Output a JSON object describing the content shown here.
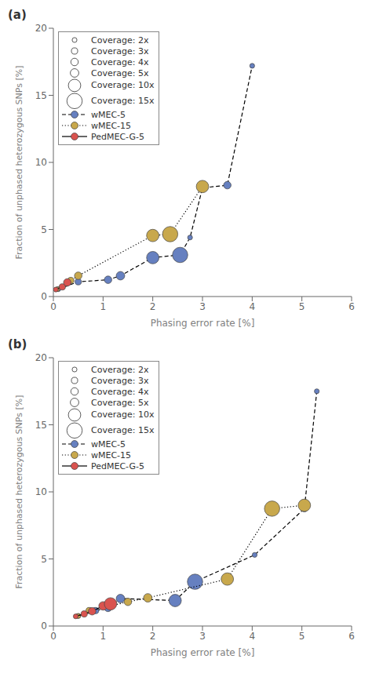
{
  "chart_data": [
    {
      "type": "scatter",
      "title": "(a)",
      "xlabel": "Phasing error rate [%]",
      "ylabel": "Fraction of unphased heterozygous SNPs [%]",
      "xlim": [
        0,
        6
      ],
      "ylim": [
        0,
        20
      ],
      "xticks": [
        0,
        1,
        2,
        3,
        4,
        5,
        6
      ],
      "yticks": [
        0,
        5,
        10,
        15,
        20
      ],
      "grid": false,
      "legend": "upper left",
      "coverage_legend": [
        {
          "coverage": 2,
          "label": "Coverage: 2x"
        },
        {
          "coverage": 3,
          "label": "Coverage: 3x"
        },
        {
          "coverage": 4,
          "label": "Coverage: 4x"
        },
        {
          "coverage": 5,
          "label": "Coverage: 5x"
        },
        {
          "coverage": 10,
          "label": "Coverage: 10x"
        },
        {
          "coverage": 15,
          "label": "Coverage: 15x"
        }
      ],
      "series": [
        {
          "name": "wMEC-5",
          "color": "#6680c0",
          "line_style": "dashed",
          "marker": "circle",
          "x": [
            0.1,
            0.5,
            1.1,
            1.35,
            2.0,
            2.55,
            2.75,
            3.0,
            3.5,
            4.0
          ],
          "values": [
            0.55,
            1.1,
            1.25,
            1.55,
            2.9,
            3.1,
            4.4,
            8.1,
            8.3,
            17.2
          ],
          "coverage": [
            2,
            3,
            4,
            5,
            10,
            15,
            2,
            3,
            4,
            2
          ]
        },
        {
          "name": "wMEC-15",
          "color": "#c8a84c",
          "line_style": "dotted",
          "marker": "circle",
          "x": [
            0.08,
            0.35,
            0.5,
            2.0,
            2.35,
            3.0
          ],
          "values": [
            0.55,
            1.2,
            1.55,
            4.55,
            4.65,
            8.2
          ],
          "coverage": [
            2,
            3,
            4,
            10,
            15,
            10
          ]
        },
        {
          "name": "PedMEC-G-5",
          "color": "#d9534f",
          "line_style": "solid",
          "marker": "circle",
          "x": [
            0.05,
            0.18,
            0.28
          ],
          "values": [
            0.52,
            0.72,
            1.05
          ],
          "coverage": [
            2,
            3,
            4
          ]
        }
      ]
    },
    {
      "type": "scatter",
      "title": "(b)",
      "xlabel": "Phasing error rate [%]",
      "ylabel": "Fraction of unphased heterozygous SNPs [%]",
      "xlim": [
        0,
        6
      ],
      "ylim": [
        0,
        20
      ],
      "xticks": [
        0,
        1,
        2,
        3,
        4,
        5,
        6
      ],
      "yticks": [
        0,
        5,
        10,
        15,
        20
      ],
      "grid": false,
      "legend": "upper left",
      "coverage_legend": [
        {
          "coverage": 2,
          "label": "Coverage: 2x"
        },
        {
          "coverage": 3,
          "label": "Coverage: 3x"
        },
        {
          "coverage": 4,
          "label": "Coverage: 4x"
        },
        {
          "coverage": 5,
          "label": "Coverage: 5x"
        },
        {
          "coverage": 10,
          "label": "Coverage: 10x"
        },
        {
          "coverage": 15,
          "label": "Coverage: 15x"
        }
      ],
      "series": [
        {
          "name": "wMEC-5",
          "color": "#6680c0",
          "line_style": "dashed",
          "marker": "circle",
          "x": [
            0.5,
            0.85,
            1.1,
            1.35,
            2.45,
            2.85,
            4.05,
            5.05,
            5.3
          ],
          "values": [
            0.75,
            1.15,
            1.35,
            2.05,
            1.9,
            3.3,
            5.3,
            8.75,
            17.5
          ],
          "coverage": [
            2,
            3,
            4,
            5,
            10,
            15,
            2,
            3,
            2
          ]
        },
        {
          "name": "wMEC-15",
          "color": "#c8a84c",
          "line_style": "dotted",
          "marker": "circle",
          "x": [
            0.5,
            0.72,
            1.5,
            1.9,
            3.5,
            4.4,
            5.05
          ],
          "values": [
            0.75,
            1.15,
            1.8,
            2.1,
            3.5,
            8.75,
            9.0
          ],
          "coverage": [
            2,
            3,
            4,
            5,
            10,
            15,
            10
          ]
        },
        {
          "name": "PedMEC-G-5",
          "color": "#d9534f",
          "line_style": "solid",
          "marker": "circle",
          "x": [
            0.45,
            0.62,
            0.78,
            1.0,
            1.15
          ],
          "values": [
            0.72,
            0.9,
            1.1,
            1.5,
            1.65
          ],
          "coverage": [
            2,
            3,
            4,
            5,
            10
          ]
        }
      ]
    }
  ]
}
